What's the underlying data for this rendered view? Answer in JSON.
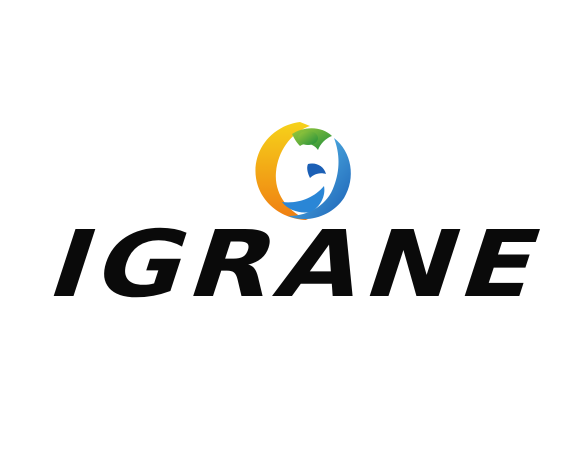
{
  "logo": {
    "wordmark": "IGRANE",
    "colors": {
      "text": "#0a0a0a",
      "orange": "#f39a16",
      "yellow": "#f6d21a",
      "green": "#39a849",
      "lime": "#9cc93a",
      "blue": "#1d6fc4",
      "cyan": "#3cb2e6",
      "background": "#ffffff"
    },
    "icon": "swirl-emblem-icon"
  }
}
